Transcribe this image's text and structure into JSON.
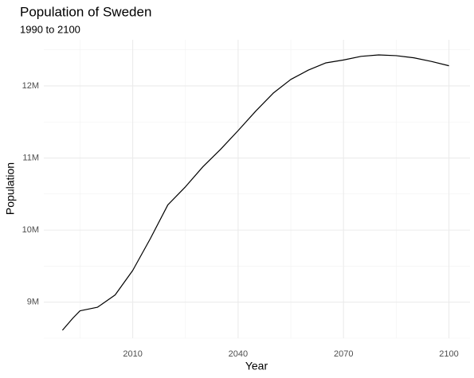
{
  "chart_data": {
    "type": "line",
    "title": "Population of Sweden",
    "subtitle": "1990 to 2100",
    "x_label": "Year",
    "y_label": "Population",
    "x": [
      1990,
      1993,
      1995,
      2000,
      2005,
      2010,
      2015,
      2020,
      2025,
      2030,
      2035,
      2040,
      2045,
      2050,
      2055,
      2060,
      2065,
      2070,
      2075,
      2080,
      2085,
      2090,
      2095,
      2100
    ],
    "values": [
      8610000,
      8780000,
      8880000,
      8930000,
      9100000,
      9440000,
      9880000,
      10350000,
      10600000,
      10880000,
      11120000,
      11380000,
      11650000,
      11900000,
      12090000,
      12220000,
      12320000,
      12360000,
      12410000,
      12430000,
      12420000,
      12390000,
      12340000,
      12280000
    ],
    "color": "#000000",
    "xlim": [
      1984.7,
      2106
    ],
    "xticks": [
      2010,
      2040,
      2070,
      2100
    ],
    "ylim": [
      8500000,
      12640000
    ],
    "yticks": [
      {
        "value": 9000000,
        "label": "9M"
      },
      {
        "value": 10000000,
        "label": "10M"
      },
      {
        "value": 11000000,
        "label": "11M"
      },
      {
        "value": 12000000,
        "label": "12M"
      }
    ],
    "grid": true
  }
}
